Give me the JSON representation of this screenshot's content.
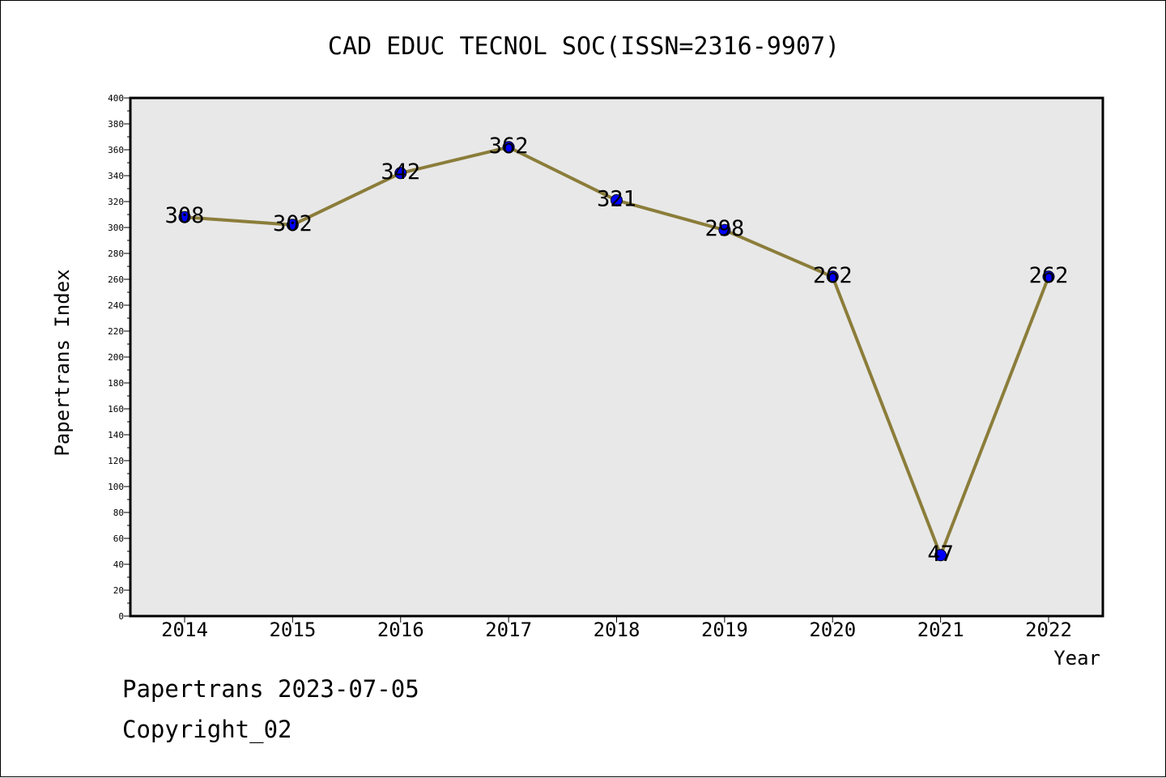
{
  "chart_data": {
    "type": "line",
    "title": "CAD EDUC TECNOL SOC(ISSN=2316-9907)",
    "xlabel": "Year",
    "ylabel": "Papertrans Index",
    "categories": [
      "2014",
      "2015",
      "2016",
      "2017",
      "2018",
      "2019",
      "2020",
      "2021",
      "2022"
    ],
    "series": [
      {
        "values": [
          308,
          302,
          342,
          362,
          321,
          298,
          262,
          47,
          262
        ],
        "data_labels": [
          "308",
          "302",
          "342",
          "362",
          "321",
          "298",
          "262",
          "47",
          "262"
        ]
      }
    ],
    "ylim": [
      0,
      400
    ],
    "yticks": [
      0,
      20,
      40,
      60,
      80,
      100,
      120,
      140,
      160,
      180,
      200,
      220,
      240,
      260,
      280,
      300,
      320,
      340,
      360,
      380,
      400
    ],
    "ytick_labels": [
      "0",
      "20",
      "40",
      "60",
      "80",
      "100",
      "120",
      "140",
      "160",
      "180",
      "200",
      "220",
      "240",
      "260",
      "280",
      "300",
      "320",
      "340",
      "360",
      "380",
      "400"
    ],
    "grid": false,
    "legend": "none",
    "colors": {
      "line": "#8b7d3a",
      "marker": "#0000ff",
      "plot_background": "#e8e8e8"
    }
  },
  "footer": {
    "date_line": "Papertrans 2023-07-05",
    "copyright_line": "Copyright_02"
  }
}
